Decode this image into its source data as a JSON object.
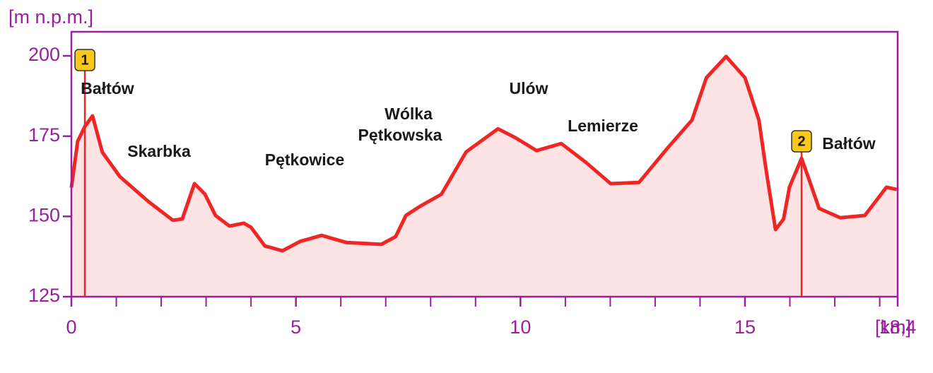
{
  "chart_data": {
    "type": "line",
    "ylabel": "[m n.p.m.]",
    "xlabel": "[km]",
    "x": [
      0,
      0.14,
      0.3,
      0.47,
      0.69,
      1.08,
      1.71,
      2.26,
      2.47,
      2.74,
      2.97,
      3.21,
      3.52,
      3.84,
      4.0,
      4.31,
      4.7,
      5.09,
      5.57,
      6.12,
      6.9,
      7.22,
      7.45,
      7.77,
      8.24,
      8.79,
      9.5,
      9.89,
      10.36,
      10.91,
      11.46,
      12.01,
      12.64,
      13.27,
      13.82,
      14.14,
      14.58,
      15.0,
      15.31,
      15.47,
      15.68,
      15.86,
      15.99,
      16.26,
      16.46,
      16.65,
      17.12,
      17.67,
      18.15,
      18.38
    ],
    "values": [
      159,
      173.4,
      178,
      181.3,
      170,
      162.4,
      154.7,
      148.8,
      149.2,
      160.2,
      157,
      150.3,
      147,
      147.9,
      146.6,
      140.8,
      139.3,
      142.2,
      144.1,
      141.9,
      141.3,
      143.7,
      150.3,
      153.2,
      156.9,
      170.1,
      177.3,
      174.5,
      170.5,
      172.7,
      166.8,
      160.2,
      160.6,
      171.2,
      180,
      193.2,
      199.8,
      193.2,
      180,
      164.6,
      145.9,
      149.2,
      159.1,
      168.1,
      160.2,
      152.5,
      149.6,
      150.3,
      159.1,
      158.4
    ],
    "color": "#ee2626",
    "fill": "#fde3e3",
    "axis_color": "#9a1e9e",
    "xlim": [
      0,
      18.4
    ],
    "ylim": [
      125,
      207.5
    ],
    "xticks": [
      0,
      5,
      10,
      15,
      {
        "value": 18.4,
        "label": "18,4"
      }
    ],
    "xminorticks": [
      1,
      2,
      3,
      4,
      6,
      7,
      8,
      9,
      11,
      12,
      13,
      14,
      16,
      17,
      18
    ],
    "yticks": [
      125,
      150,
      175,
      200
    ],
    "markers": [
      {
        "label": "1",
        "x": 0.3
      },
      {
        "label": "2",
        "x": 16.26
      }
    ],
    "annotations": [
      "Bałtów",
      "Skarbka",
      "Pętkowice",
      "Wólka",
      "Pętkowska",
      "Ulów",
      "Lemierze",
      "Bałtów"
    ]
  }
}
